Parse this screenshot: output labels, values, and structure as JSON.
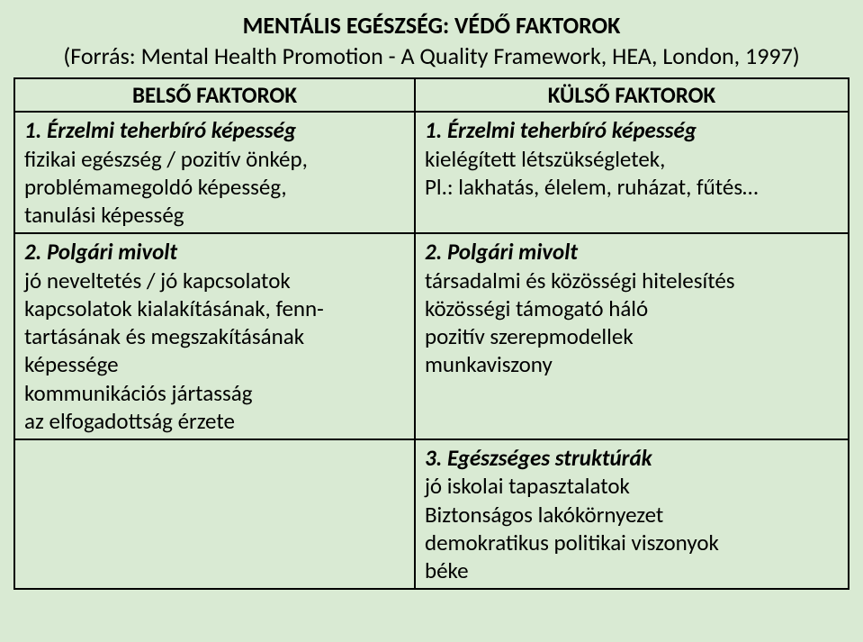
{
  "title": "MENTÁLIS EGÉSZSÉG: VÉDŐ FAKTOROK",
  "subtitle": "(Forrás: Mental Health Promotion - A Quality Framework, HEA, London, 1997)",
  "headers": {
    "left": "BELSŐ FAKTOROK",
    "right": "KÜLSŐ FAKTOROK"
  },
  "row1": {
    "left": {
      "heading": "1. Érzelmi teherbíró képesség",
      "line1": "fizikai egészség / pozitív önkép,",
      "line2": "problémamegoldó képesség,",
      "line3": "tanulási képesség"
    },
    "right": {
      "heading": "1. Érzelmi teherbíró képesség",
      "line1": "kielégített létszükségletek,",
      "line2": "Pl.: lakhatás, élelem, ruházat, fűtés…"
    }
  },
  "row2": {
    "left": {
      "heading": "2. Polgári mivolt",
      "line1": "jó neveltetés / jó kapcsolatok",
      "line2": "kapcsolatok kialakításának, fenn-",
      "line3": "tartásának és megszakításának",
      "line4": "képessége",
      "line5": "kommunikációs jártasság",
      "line6": "az elfogadottság érzete"
    },
    "right": {
      "heading": "2. Polgári mivolt",
      "line1": "társadalmi és közösségi hitelesítés",
      "line2": "közösségi támogató háló",
      "line3": "pozitív szerepmodellek",
      "line4": "munkaviszony"
    }
  },
  "row3": {
    "right": {
      "heading": "3. Egészséges struktúrák",
      "line1": "jó iskolai tapasztalatok",
      "line2": "Biztonságos lakókörnyezet",
      "line3": "demokratikus politikai viszonyok",
      "line4": "béke"
    }
  },
  "colors": {
    "background": "#d9ead3",
    "text": "#000000",
    "border": "#000000"
  }
}
